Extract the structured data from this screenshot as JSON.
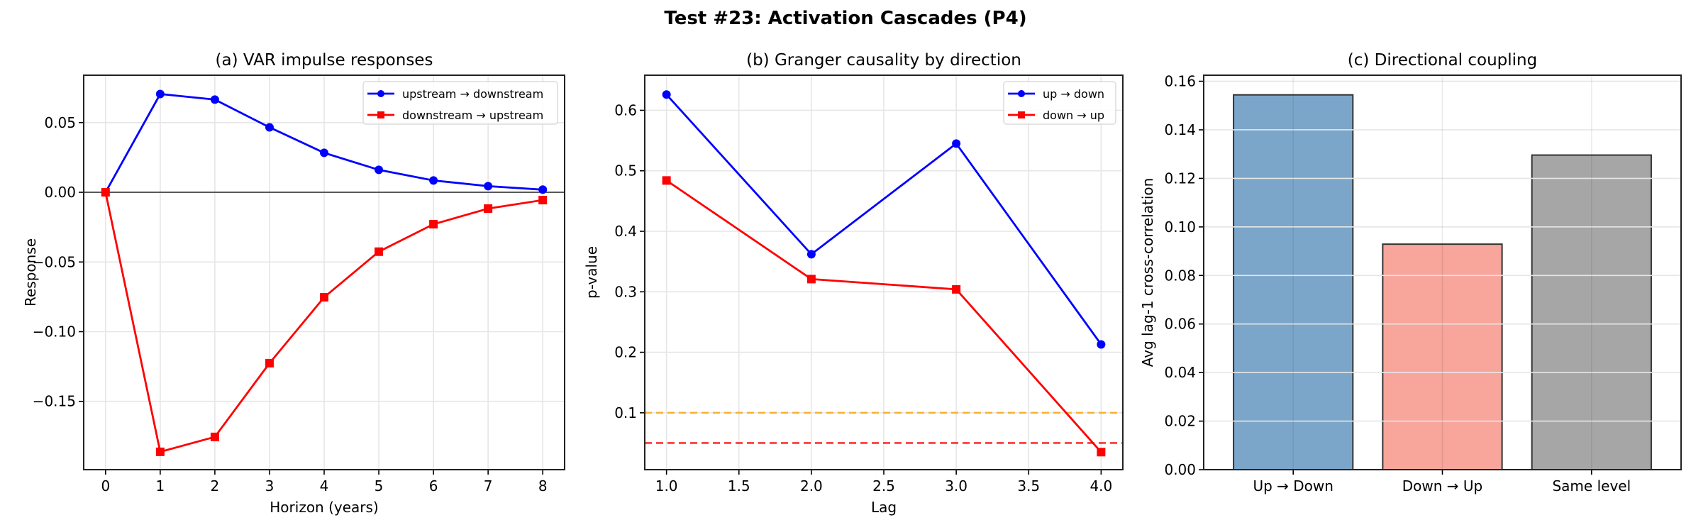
{
  "suptitle": "Test #23: Activation Cascades (P4)",
  "chart_data": [
    {
      "type": "line",
      "title": "(a) VAR impulse responses",
      "xlabel": "Horizon (years)",
      "ylabel": "Response",
      "xlim": [
        -0.4,
        8.4
      ],
      "ylim": [
        -0.199,
        0.084
      ],
      "xticks": [
        0,
        1,
        2,
        3,
        4,
        5,
        6,
        7,
        8
      ],
      "xtick_labels": [
        "0",
        "1",
        "2",
        "3",
        "4",
        "5",
        "6",
        "7",
        "8"
      ],
      "yticks": [
        -0.15,
        -0.1,
        -0.05,
        0.0,
        0.05
      ],
      "ytick_labels": [
        "−0.15",
        "−0.10",
        "−0.05",
        "0.00",
        "0.05"
      ],
      "grid": true,
      "reference_line": 0,
      "legend": "top-right",
      "x": [
        0,
        1,
        2,
        3,
        4,
        5,
        6,
        7,
        8
      ],
      "series": [
        {
          "name": "upstream → downstream",
          "color": "#0000ff",
          "marker": "circle",
          "values": [
            0.0,
            0.0705,
            0.0665,
            0.0466,
            0.0283,
            0.0161,
            0.0085,
            0.0044,
            0.0019
          ]
        },
        {
          "name": "downstream → upstream",
          "color": "#ff0000",
          "marker": "square",
          "values": [
            0.0,
            -0.1862,
            -0.1755,
            -0.1226,
            -0.0753,
            -0.0426,
            -0.0229,
            -0.0117,
            -0.0056
          ]
        }
      ]
    },
    {
      "type": "line",
      "title": "(b) Granger causality by direction",
      "xlabel": "Lag",
      "ylabel": "p-value",
      "xlim": [
        0.85,
        4.15
      ],
      "ylim": [
        0.006,
        0.658
      ],
      "xticks": [
        1.0,
        1.5,
        2.0,
        2.5,
        3.0,
        3.5,
        4.0
      ],
      "xtick_labels": [
        "1.0",
        "1.5",
        "2.0",
        "2.5",
        "3.0",
        "3.5",
        "4.0"
      ],
      "yticks": [
        0.1,
        0.2,
        0.3,
        0.4,
        0.5,
        0.6
      ],
      "ytick_labels": [
        "0.1",
        "0.2",
        "0.3",
        "0.4",
        "0.5",
        "0.6"
      ],
      "grid": true,
      "legend": "top-right",
      "threshold_lines": [
        {
          "value": 0.1,
          "color": "#ffa500",
          "style": "dashed"
        },
        {
          "value": 0.05,
          "color": "#ff0000",
          "style": "dashed"
        }
      ],
      "x": [
        1,
        2,
        3,
        4
      ],
      "series": [
        {
          "name": "up → down",
          "color": "#0000ff",
          "marker": "circle",
          "values": [
            0.626,
            0.362,
            0.545,
            0.213
          ]
        },
        {
          "name": "down → up",
          "color": "#ff0000",
          "marker": "square",
          "values": [
            0.484,
            0.321,
            0.304,
            0.035
          ]
        }
      ]
    },
    {
      "type": "bar",
      "title": "(c) Directional coupling",
      "xlabel": "",
      "ylabel": "Avg lag-1 cross-correlation",
      "ylim": [
        0,
        0.1625
      ],
      "yticks": [
        0,
        0.02,
        0.04,
        0.06,
        0.08,
        0.1,
        0.12,
        0.14,
        0.16
      ],
      "ytick_labels": [
        "0.00",
        "0.02",
        "0.04",
        "0.06",
        "0.08",
        "0.10",
        "0.12",
        "0.14",
        "0.16"
      ],
      "grid": true,
      "categories": [
        "Up → Down",
        "Down → Up",
        "Same level"
      ],
      "values": [
        0.1544,
        0.0929,
        0.1296
      ],
      "colors": [
        "#7ba6ca",
        "#f8a59c",
        "#a6a6a6"
      ]
    }
  ]
}
